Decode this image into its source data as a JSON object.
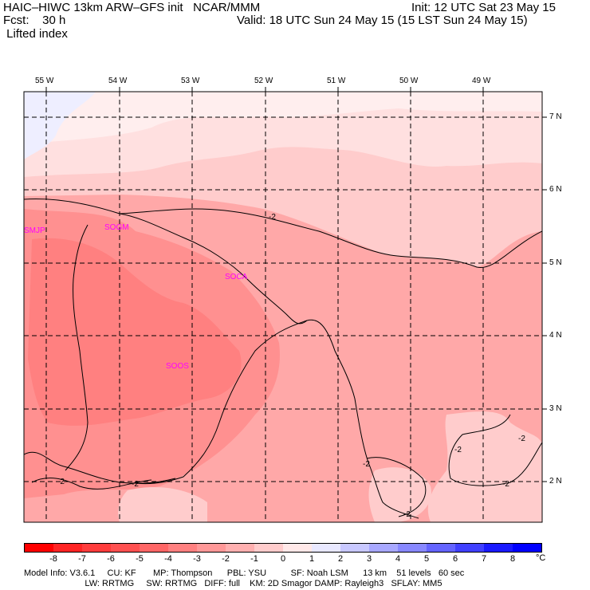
{
  "header": {
    "model_line": "HAIC–HIWC 13km ARW–GFS init   NCAR/MMM",
    "fcst_line": "Fcst:    30 h",
    "field_line": " Lifted index",
    "init_line": "Init: 12 UTC Sat 23 May 15",
    "valid_line": "Valid: 18 UTC Sun 24 May 15 (15 LST Sun 24 May 15)"
  },
  "map": {
    "lon_labels": [
      "55 W",
      "54 W",
      "53 W",
      "52 W",
      "51 W",
      "50 W",
      "49 W"
    ],
    "lat_labels": [
      "7 N",
      "6 N",
      "5 N",
      "4 N",
      "3 N",
      "2 N"
    ],
    "stations": [
      "SMJP",
      "SOGM",
      "SOCA",
      "SOOS"
    ],
    "contour_labels": [
      "-2",
      "-2",
      "-2",
      "-2",
      "-2",
      "-2",
      "-2",
      "-2"
    ]
  },
  "colorbar": {
    "labels": [
      "-8",
      "-7",
      "-6",
      "-5",
      "-4",
      "-3",
      "-2",
      "-1",
      "0",
      "1",
      "2",
      "3",
      "4",
      "5",
      "6",
      "7",
      "8"
    ],
    "unit": "°C",
    "colors": [
      "#ff0000",
      "#ff2424",
      "#ff3c3c",
      "#ff5050",
      "#ff6666",
      "#ff8080",
      "#ff9898",
      "#ffb0b0",
      "#ffcccc",
      "#ffe8e8",
      "#e8e8ff",
      "#c8c8ff",
      "#a8a8ff",
      "#8888ff",
      "#6464ff",
      "#4040ff",
      "#1a1aff",
      "#0000ff"
    ]
  },
  "footer": {
    "line1": "Model Info: V3.6.1     CU: KF       MP: Thompson      PBL: YSU          SF: Noah LSM      13 km    51 levels   60 sec",
    "line2": "                         LW: RRTMG     SW: RRTMG   DIFF: full    KM: 2D Smagor DAMP: Rayleigh3   SFLAY: MM5"
  }
}
